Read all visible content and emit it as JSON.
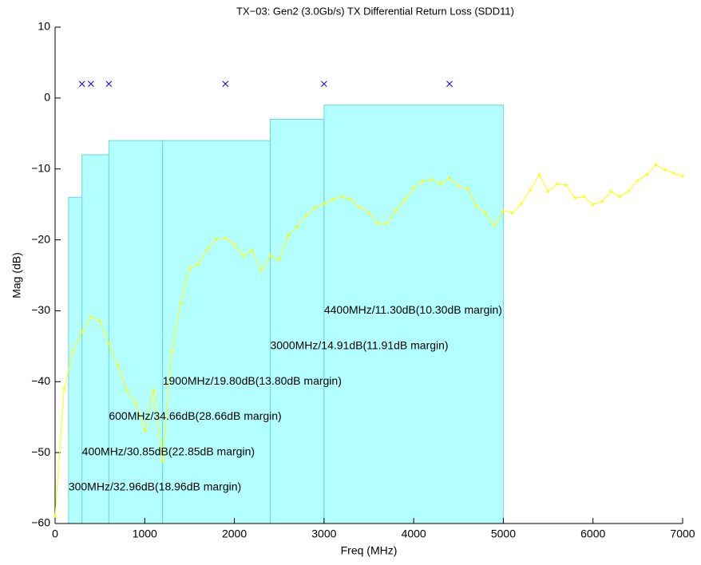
{
  "chart_data": {
    "type": "line",
    "title": "TX−03: Gen2 (3.0Gb/s) TX Differential Return Loss (SDD11)",
    "x_label": "Freq (MHz)",
    "y_label": "Mag (dB)",
    "xlim": [
      0,
      7000
    ],
    "ylim": [
      -60,
      10
    ],
    "xticks": [
      0,
      1000,
      2000,
      3000,
      4000,
      5000,
      6000,
      7000
    ],
    "yticks": [
      -60,
      -50,
      -40,
      -30,
      -20,
      -10,
      0,
      10
    ],
    "mask": {
      "color": "#b3ffff",
      "edge_color": "#66d9d9",
      "edges": [
        150,
        300,
        600,
        1200,
        2400,
        3000,
        5000
      ],
      "values": [
        -14,
        -8,
        -6,
        -6,
        -3,
        -1
      ]
    },
    "series": [
      {
        "color": "#ffff00",
        "x": [
          0,
          100,
          200,
          300,
          400,
          500,
          600,
          700,
          800,
          900,
          1000,
          1100,
          1200,
          1300,
          1400,
          1500,
          1600,
          1700,
          1800,
          1900,
          2000,
          2100,
          2200,
          2300,
          2400,
          2500,
          2600,
          2700,
          2800,
          2900,
          3000,
          3100,
          3200,
          3300,
          3400,
          3500,
          3600,
          3700,
          3800,
          3900,
          4000,
          4100,
          4200,
          4300,
          4400,
          4500,
          4600,
          4700,
          4800,
          4900,
          5000,
          5100,
          5200,
          5300,
          5400,
          5500,
          5600,
          5700,
          5800,
          5900,
          6000,
          6100,
          6200,
          6300,
          6400,
          6500,
          6600,
          6700,
          6800,
          6900,
          7000
        ],
        "values": [
          -59,
          -41,
          -35.7,
          -32.96,
          -30.85,
          -31.5,
          -34.66,
          -37.7,
          -41.2,
          -43,
          -47,
          -41.2,
          -51.2,
          -35.7,
          -29,
          -24,
          -23.4,
          -21.3,
          -19.9,
          -19.8,
          -20.7,
          -22.2,
          -21.5,
          -24.3,
          -22.2,
          -22.8,
          -19.4,
          -18.2,
          -16.6,
          -15.4,
          -14.91,
          -14.3,
          -13.9,
          -14.3,
          -15.4,
          -16.2,
          -17.7,
          -17.7,
          -15.9,
          -14.4,
          -12.7,
          -11.7,
          -11.5,
          -12.1,
          -11.3,
          -12.4,
          -12.8,
          -15.2,
          -16.2,
          -18,
          -15.9,
          -16.2,
          -14.9,
          -13,
          -10.8,
          -13.2,
          -12.1,
          -12.3,
          -14.1,
          -13.9,
          -15,
          -14.6,
          -13.2,
          -13.9,
          -13.1,
          -11.6,
          -10.8,
          -9.4,
          -10.1,
          -10.6,
          -11
        ]
      }
    ],
    "markers": {
      "color": "#0000ff",
      "x": [
        300,
        400,
        600,
        1900,
        3000,
        4400
      ],
      "values": [
        2,
        2,
        2,
        2,
        2,
        2
      ]
    },
    "annotations": [
      "300MHz/32.96dB(18.96dB margin)",
      "400MHz/30.85dB(22.85dB margin)",
      "600MHz/34.66dB(28.66dB margin)",
      "1900MHz/19.80dB(13.80dB margin)",
      "3000MHz/14.91dB(11.91dB margin)",
      "4400MHz/11.30dB(10.30dB margin)"
    ]
  }
}
